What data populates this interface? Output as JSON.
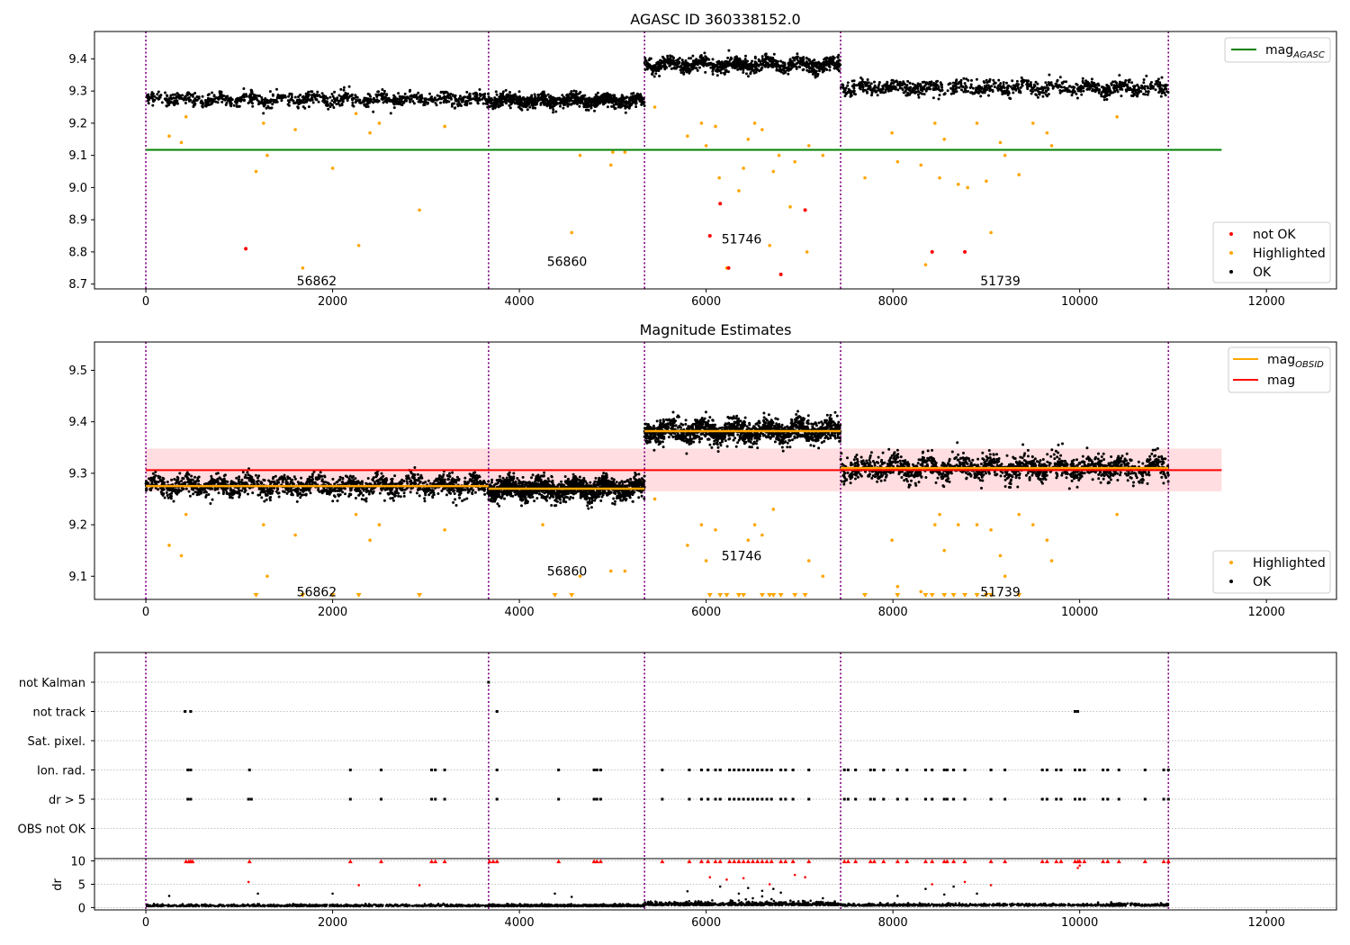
{
  "figure": {
    "background": "#ffffff"
  },
  "colors": {
    "ok": "#000000",
    "highlighted": "#ffa500",
    "not_ok": "#ff0000",
    "mag_agasc": "#008000",
    "mag_obsid": "#ffa500",
    "mag": "#ff0000",
    "band": "#ffdde0",
    "obs_divider": "#800080",
    "dr_points": "#000000",
    "dr_outliers": "#ff0000"
  },
  "chart_data": [
    {
      "type": "scatter",
      "title": "AGASC ID 360338152.0",
      "xlabel": "",
      "ylabel": "",
      "xlim": [
        -550,
        12750
      ],
      "ylim": [
        8.685,
        9.485
      ],
      "x_ticks": [
        0,
        2000,
        4000,
        6000,
        8000,
        10000,
        12000
      ],
      "y_ticks": [
        8.7,
        8.8,
        8.9,
        9.0,
        9.1,
        9.2,
        9.3,
        9.4
      ],
      "grid": false,
      "observation_boundaries": [
        0,
        3670,
        5340,
        7440,
        10950
      ],
      "obsids": [
        {
          "label": "56862",
          "x": 1830,
          "y": 8.71
        },
        {
          "label": "56860",
          "x": 4510,
          "y": 8.77
        },
        {
          "label": "51746",
          "x": 6380,
          "y": 8.84
        },
        {
          "label": "51739",
          "x": 9150,
          "y": 8.71
        }
      ],
      "lines": [
        {
          "name": "mag$_{AGASC}$",
          "legend_main": "mag",
          "legend_sub": "AGASC",
          "y": 9.117,
          "x_range": [
            0,
            11520
          ],
          "color_key": "mag_agasc"
        }
      ],
      "ok_segments": [
        {
          "x0": 0,
          "x1": 3670,
          "level": 9.275,
          "spread": 0.022
        },
        {
          "x0": 3670,
          "x1": 5340,
          "level": 9.27,
          "spread": 0.022
        },
        {
          "x0": 5340,
          "x1": 7440,
          "level": 9.382,
          "spread": 0.024
        },
        {
          "x0": 7440,
          "x1": 10950,
          "level": 9.31,
          "spread": 0.025
        }
      ],
      "highlighted_points": [
        [
          250,
          9.16
        ],
        [
          380,
          9.14
        ],
        [
          430,
          9.22
        ],
        [
          1180,
          9.05
        ],
        [
          1260,
          9.2
        ],
        [
          1300,
          9.1
        ],
        [
          1600,
          9.18
        ],
        [
          1680,
          8.75
        ],
        [
          2000,
          9.06
        ],
        [
          2250,
          9.23
        ],
        [
          2280,
          8.82
        ],
        [
          2400,
          9.17
        ],
        [
          2500,
          9.2
        ],
        [
          2930,
          8.93
        ],
        [
          3200,
          9.19
        ],
        [
          4560,
          8.86
        ],
        [
          4650,
          9.1
        ],
        [
          4980,
          9.07
        ],
        [
          5000,
          9.11
        ],
        [
          5130,
          9.11
        ],
        [
          5450,
          9.25
        ],
        [
          5800,
          9.16
        ],
        [
          5950,
          9.2
        ],
        [
          6000,
          9.13
        ],
        [
          6100,
          9.19
        ],
        [
          6140,
          9.03
        ],
        [
          6220,
          8.75
        ],
        [
          6350,
          8.99
        ],
        [
          6400,
          9.06
        ],
        [
          6450,
          9.15
        ],
        [
          6520,
          9.2
        ],
        [
          6600,
          9.18
        ],
        [
          6680,
          8.82
        ],
        [
          6720,
          9.05
        ],
        [
          6780,
          9.1
        ],
        [
          6900,
          8.94
        ],
        [
          6950,
          9.08
        ],
        [
          7100,
          9.13
        ],
        [
          7080,
          8.8
        ],
        [
          7250,
          9.1
        ],
        [
          7700,
          9.03
        ],
        [
          7990,
          9.17
        ],
        [
          8050,
          9.08
        ],
        [
          8350,
          8.76
        ],
        [
          8300,
          9.07
        ],
        [
          8450,
          9.2
        ],
        [
          8500,
          9.03
        ],
        [
          8550,
          9.15
        ],
        [
          8700,
          9.01
        ],
        [
          8800,
          9.0
        ],
        [
          8900,
          9.2
        ],
        [
          9000,
          9.02
        ],
        [
          9050,
          8.86
        ],
        [
          9150,
          9.14
        ],
        [
          9200,
          9.1
        ],
        [
          9350,
          9.04
        ],
        [
          9500,
          9.2
        ],
        [
          9650,
          9.17
        ],
        [
          9700,
          9.13
        ],
        [
          10400,
          9.22
        ]
      ],
      "not_ok_points": [
        [
          1070,
          8.81
        ],
        [
          6040,
          8.85
        ],
        [
          6150,
          8.95
        ],
        [
          6240,
          8.75
        ],
        [
          6800,
          8.73
        ],
        [
          7060,
          8.93
        ],
        [
          8420,
          8.8
        ],
        [
          8770,
          8.8
        ]
      ],
      "legend": {
        "upper": [
          "mag$_{AGASC}$"
        ],
        "lower": [
          "not OK",
          "Highlighted",
          "OK"
        ]
      }
    },
    {
      "type": "scatter",
      "title": "Magnitude Estimates",
      "xlabel": "",
      "ylabel": "",
      "xlim": [
        -550,
        12750
      ],
      "ylim": [
        9.055,
        9.555
      ],
      "x_ticks": [
        0,
        2000,
        4000,
        6000,
        8000,
        10000,
        12000
      ],
      "y_ticks": [
        9.1,
        9.2,
        9.3,
        9.4,
        9.5
      ],
      "grid": false,
      "observation_boundaries": [
        0,
        3670,
        5340,
        7440,
        10950
      ],
      "obsids": [
        {
          "label": "56862",
          "x": 1830,
          "y": 9.07
        },
        {
          "label": "56860",
          "x": 4510,
          "y": 9.11
        },
        {
          "label": "51746",
          "x": 6380,
          "y": 9.14
        },
        {
          "label": "51739",
          "x": 9150,
          "y": 9.07
        }
      ],
      "band": {
        "y0": 9.265,
        "y1": 9.348,
        "x_range": [
          0,
          11520
        ]
      },
      "lines": [
        {
          "name": "mag$_{OBSID}$",
          "legend_main": "mag",
          "legend_sub": "OBSID",
          "segments": [
            [
              0,
              3670,
              9.275
            ],
            [
              3670,
              5340,
              9.27
            ],
            [
              5340,
              7440,
              9.382
            ],
            [
              7440,
              10950,
              9.31
            ]
          ],
          "color_key": "mag_obsid"
        },
        {
          "name": "mag",
          "legend_main": "mag",
          "legend_sub": "",
          "y": 9.306,
          "x_range": [
            0,
            11520
          ],
          "color_key": "mag"
        }
      ],
      "ok_segments": [
        {
          "x0": 0,
          "x1": 3670,
          "level": 9.275,
          "spread": 0.022
        },
        {
          "x0": 3670,
          "x1": 5340,
          "level": 9.27,
          "spread": 0.022
        },
        {
          "x0": 5340,
          "x1": 7440,
          "level": 9.382,
          "spread": 0.024
        },
        {
          "x0": 7440,
          "x1": 10950,
          "level": 9.31,
          "spread": 0.025
        }
      ],
      "highlighted_points": [
        [
          250,
          9.16
        ],
        [
          380,
          9.14
        ],
        [
          430,
          9.22
        ],
        [
          1260,
          9.2
        ],
        [
          1300,
          9.1
        ],
        [
          1600,
          9.18
        ],
        [
          2250,
          9.22
        ],
        [
          2400,
          9.17
        ],
        [
          2500,
          9.2
        ],
        [
          3200,
          9.19
        ],
        [
          4250,
          9.2
        ],
        [
          4650,
          9.1
        ],
        [
          4980,
          9.11
        ],
        [
          5130,
          9.11
        ],
        [
          5450,
          9.25
        ],
        [
          5800,
          9.16
        ],
        [
          5950,
          9.2
        ],
        [
          6000,
          9.13
        ],
        [
          6100,
          9.19
        ],
        [
          6450,
          9.17
        ],
        [
          6520,
          9.2
        ],
        [
          6600,
          9.18
        ],
        [
          6720,
          9.23
        ],
        [
          7100,
          9.13
        ],
        [
          7250,
          9.1
        ],
        [
          7990,
          9.17
        ],
        [
          8050,
          9.08
        ],
        [
          8300,
          9.07
        ],
        [
          8450,
          9.2
        ],
        [
          8500,
          9.22
        ],
        [
          8550,
          9.15
        ],
        [
          8700,
          9.2
        ],
        [
          8900,
          9.2
        ],
        [
          9050,
          9.19
        ],
        [
          9150,
          9.14
        ],
        [
          9200,
          9.1
        ],
        [
          9350,
          9.22
        ],
        [
          9500,
          9.2
        ],
        [
          9650,
          9.17
        ],
        [
          9700,
          9.13
        ],
        [
          10400,
          9.22
        ]
      ],
      "clipped_points_x": [
        1180,
        1680,
        2000,
        2280,
        2930,
        4380,
        4560,
        6040,
        6150,
        6220,
        6350,
        6400,
        6600,
        6680,
        6720,
        6800,
        6950,
        7060,
        7700,
        8050,
        8350,
        8420,
        8550,
        8650,
        8770,
        8900,
        9000,
        9050,
        9350
      ],
      "legend": {
        "upper": [
          "mag$_{OBSID}$",
          "mag"
        ],
        "lower": [
          "Highlighted",
          "OK"
        ]
      }
    },
    {
      "type": "scatter",
      "title": "",
      "xlabel": "",
      "ylabel": "",
      "xlim": [
        -550,
        12750
      ],
      "categories": [
        "not Kalman",
        "not track",
        "Sat. pixel.",
        "Ion. rad.",
        "dr > 5",
        "OBS not OK"
      ],
      "x_ticks": [],
      "grid": true,
      "observation_boundaries": [
        0,
        3670,
        5340,
        7440,
        10950
      ],
      "flags": {
        "not Kalman": [
          3670
        ],
        "not track": [
          420,
          480,
          3760,
          9950,
          9980
        ],
        "Sat. pixel.": [],
        "Ion. rad.": [
          450,
          480,
          1110,
          2190,
          2520,
          3060,
          3100,
          3200,
          3760,
          4420,
          4800,
          4830,
          4870,
          5530,
          5820,
          5950,
          6020,
          6100,
          6150,
          6250,
          6300,
          6350,
          6400,
          6450,
          6500,
          6550,
          6600,
          6650,
          6700,
          6800,
          6850,
          6930,
          7100,
          7480,
          7520,
          7600,
          7760,
          7800,
          7900,
          8050,
          8150,
          8350,
          8420,
          8550,
          8580,
          8650,
          8770,
          9050,
          9200,
          9600,
          9650,
          9750,
          9800,
          9950,
          10000,
          10050,
          10250,
          10300,
          10420,
          10700,
          10900,
          10950
        ],
        "dr > 5": [
          450,
          480,
          1100,
          1130,
          2190,
          2520,
          3060,
          3100,
          3200,
          3760,
          4420,
          4800,
          4830,
          4870,
          5530,
          5820,
          5950,
          6020,
          6100,
          6150,
          6250,
          6300,
          6350,
          6400,
          6450,
          6500,
          6550,
          6600,
          6650,
          6700,
          6800,
          6850,
          6930,
          7100,
          7480,
          7520,
          7600,
          7760,
          7800,
          7900,
          8050,
          8150,
          8350,
          8420,
          8550,
          8580,
          8650,
          8770,
          9050,
          9200,
          9600,
          9650,
          9750,
          9800,
          9950,
          10000,
          10050,
          10250,
          10300,
          10420,
          10700,
          10900,
          10950
        ],
        "OBS not OK": []
      }
    },
    {
      "type": "scatter",
      "title": "",
      "xlabel": "",
      "ylabel": "dr",
      "xlim": [
        -550,
        12750
      ],
      "ylim": [
        -0.5,
        10.5
      ],
      "x_ticks": [
        0,
        2000,
        4000,
        6000,
        8000,
        10000,
        12000
      ],
      "y_ticks": [
        0,
        5,
        10
      ],
      "grid": true,
      "observation_boundaries": [
        0,
        3670,
        5340,
        7440,
        10950
      ],
      "outliers_at_cap_x": [
        430,
        460,
        480,
        500,
        1110,
        2190,
        2520,
        3060,
        3100,
        3200,
        3680,
        3720,
        3760,
        4420,
        4800,
        4830,
        4870,
        5530,
        5820,
        5950,
        6020,
        6100,
        6150,
        6250,
        6300,
        6350,
        6400,
        6450,
        6500,
        6550,
        6600,
        6650,
        6700,
        6800,
        6850,
        6930,
        7100,
        7480,
        7520,
        7600,
        7760,
        7800,
        7900,
        8050,
        8150,
        8350,
        8420,
        8550,
        8580,
        8650,
        8770,
        9050,
        9200,
        9600,
        9650,
        9750,
        9800,
        9950,
        9980,
        10000,
        10050,
        10250,
        10300,
        10420,
        10700,
        10900,
        10950
      ],
      "mid_points": [
        [
          250,
          2.5
        ],
        [
          1100,
          5.5
        ],
        [
          1200,
          3.0
        ],
        [
          2000,
          3.0
        ],
        [
          2280,
          4.8
        ],
        [
          2930,
          4.8
        ],
        [
          4380,
          3.0
        ],
        [
          4560,
          2.3
        ],
        [
          5800,
          3.5
        ],
        [
          6040,
          6.5
        ],
        [
          6150,
          4.5
        ],
        [
          6220,
          6.0
        ],
        [
          6350,
          3.0
        ],
        [
          6400,
          6.3
        ],
        [
          6450,
          4.2
        ],
        [
          6600,
          3.6
        ],
        [
          6680,
          5.0
        ],
        [
          6720,
          4.0
        ],
        [
          6800,
          3.2
        ],
        [
          6950,
          7.0
        ],
        [
          7060,
          6.5
        ],
        [
          7250,
          2.0
        ],
        [
          8050,
          2.5
        ],
        [
          8350,
          4.0
        ],
        [
          8420,
          5.0
        ],
        [
          8550,
          2.8
        ],
        [
          8650,
          4.5
        ],
        [
          8770,
          5.5
        ],
        [
          8900,
          3.0
        ],
        [
          9050,
          4.8
        ],
        [
          9980,
          8.5
        ],
        [
          10000,
          9.0
        ],
        [
          6500,
          2.0
        ],
        [
          6600,
          2.4
        ],
        [
          6700,
          1.8
        ]
      ],
      "base_segments": [
        {
          "x0": 0,
          "x1": 3670,
          "level": 0.35,
          "spread": 0.3
        },
        {
          "x0": 3670,
          "x1": 5340,
          "level": 0.35,
          "spread": 0.3
        },
        {
          "x0": 5340,
          "x1": 7440,
          "level": 0.6,
          "spread": 0.55
        },
        {
          "x0": 7440,
          "x1": 10950,
          "level": 0.45,
          "spread": 0.4
        }
      ]
    }
  ]
}
